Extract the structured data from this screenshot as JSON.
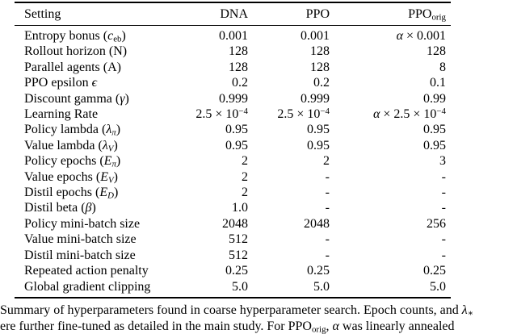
{
  "table": {
    "columns": [
      "Setting",
      "DNA",
      "PPO",
      "PPO_{orig}"
    ],
    "rows": [
      [
        "Entropy bonus ($c$_{eb})",
        "0.001",
        "0.001",
        "$α$ × 0.001"
      ],
      [
        "Rollout horizon (N)",
        "128",
        "128",
        "128"
      ],
      [
        "Parallel agents (A)",
        "128",
        "128",
        "8"
      ],
      [
        "PPO epsilon $ϵ$",
        "0.2",
        "0.2",
        "0.1"
      ],
      [
        "Discount gamma ($γ$)",
        "0.999",
        "0.999",
        "0.99"
      ],
      [
        "Learning Rate",
        "2.5 × 10^{−4}",
        "2.5 × 10^{−4}",
        "$α$ × 2.5 × 10^{−4}"
      ],
      [
        "Policy lambda ($λ_{π}$)",
        "0.95",
        "0.95",
        "0.95"
      ],
      [
        "Value lambda ($λ_{V}$)",
        "0.95",
        "0.95",
        "0.95"
      ],
      [
        "Policy epochs ($E_{π}$)",
        "2",
        "2",
        "3"
      ],
      [
        "Value epochs ($E_{V}$)",
        "2",
        "-",
        "-"
      ],
      [
        "Distil epochs ($E_{D}$)",
        "2",
        "-",
        "-"
      ],
      [
        "Distil beta ($β$)",
        "1.0",
        "-",
        "-"
      ],
      [
        "Policy mini-batch size",
        "2048",
        "2048",
        "256"
      ],
      [
        "Value mini-batch size",
        "512",
        "-",
        "-"
      ],
      [
        "Distil mini-batch size",
        "512",
        "-",
        "-"
      ],
      [
        "Repeated action penalty",
        "0.25",
        "0.25",
        "0.25"
      ],
      [
        "Global gradient clipping",
        "5.0",
        "5.0",
        "5.0"
      ]
    ]
  },
  "caption": {
    "line1": "Summary of hyperparameters found in coarse hyperparameter search. Epoch counts, and $λ_{∗}$",
    "line2": "ere further fine-tuned as detailed in the main study. For PPO_{orig}, $α$ was linearly annealed"
  },
  "colors": {
    "background": "#ffffff",
    "text": "#000000",
    "rule": "#000000"
  }
}
